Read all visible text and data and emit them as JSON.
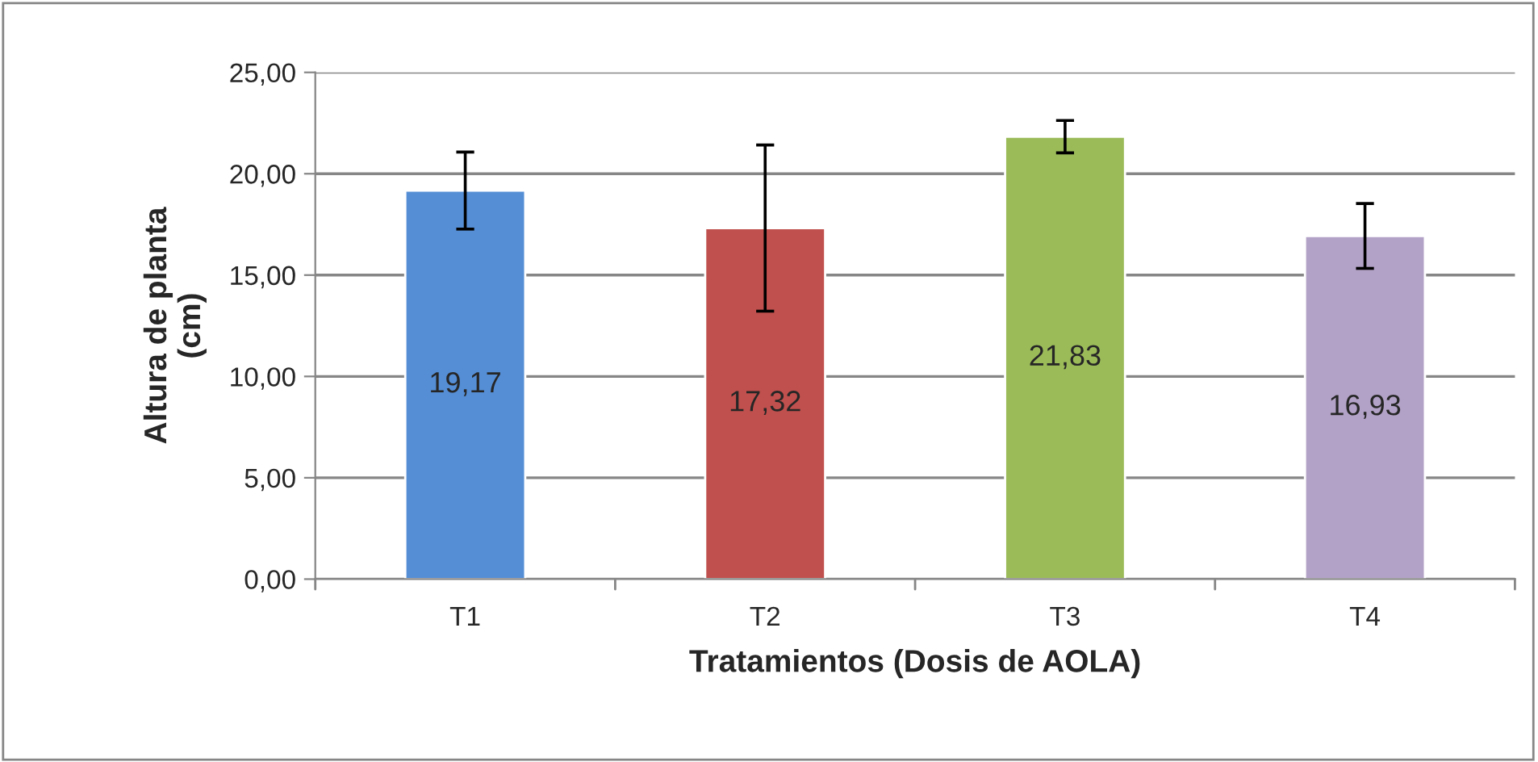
{
  "chart_data": {
    "type": "bar",
    "xlabel": "Tratamientos (Dosis de AOLA)",
    "ylabel": "Altura de planta\n(cm)",
    "categories": [
      "T1",
      "T2",
      "T3",
      "T4"
    ],
    "values": [
      19.17,
      17.32,
      21.83,
      16.93
    ],
    "colors": [
      "#558ed5",
      "#c0504d",
      "#9bbb59",
      "#b3a2c7"
    ],
    "errors": [
      1.9,
      4.1,
      0.8,
      1.6
    ],
    "value_labels": [
      "19,17",
      "17,32",
      "21,83",
      "16,93"
    ],
    "ylim": [
      0,
      25
    ],
    "yticks": [
      {
        "value": 0,
        "label": "0,00"
      },
      {
        "value": 5,
        "label": "5,00"
      },
      {
        "value": 10,
        "label": "10,00"
      },
      {
        "value": 15,
        "label": "15,00"
      },
      {
        "value": 20,
        "label": "20,00"
      },
      {
        "value": 25,
        "label": "25,00"
      }
    ],
    "grid": "y",
    "legend": false
  }
}
